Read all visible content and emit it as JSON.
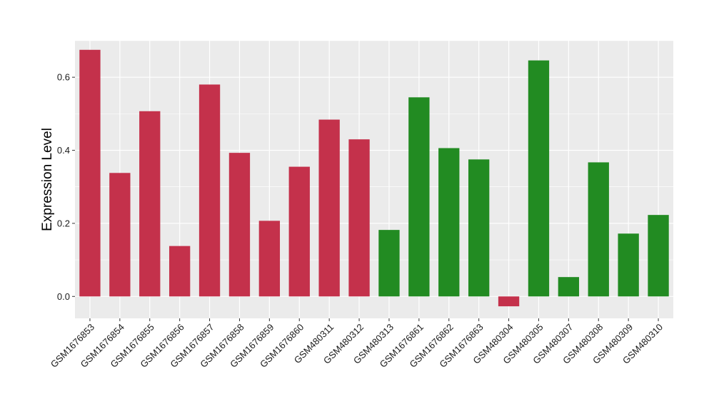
{
  "chart_data": {
    "type": "bar",
    "title": "",
    "xlabel": "",
    "ylabel": "Expression Level",
    "ylim": [
      -0.06,
      0.7
    ],
    "yticks": [
      0.0,
      0.2,
      0.4,
      0.6
    ],
    "ytick_labels": [
      "0.0",
      "0.2",
      "0.4",
      "0.6"
    ],
    "grid": true,
    "legend": "none",
    "panel_color": "#ebebeb",
    "gridline_color": "#ffffff",
    "categories": [
      "GSM1676853",
      "GSM1676854",
      "GSM1676855",
      "GSM1676856",
      "GSM1676857",
      "GSM1676858",
      "GSM1676859",
      "GSM1676860",
      "GSM480311",
      "GSM480312",
      "GSM480313",
      "GSM1676861",
      "GSM1676862",
      "GSM1676863",
      "GSM480304",
      "GSM480305",
      "GSM480307",
      "GSM480308",
      "GSM480309",
      "GSM480310"
    ],
    "values": [
      0.675,
      0.338,
      0.507,
      0.138,
      0.58,
      0.393,
      0.207,
      0.355,
      0.484,
      0.43,
      0.182,
      0.545,
      0.406,
      0.375,
      -0.027,
      0.646,
      0.053,
      0.367,
      0.172,
      0.223
    ],
    "bar_colors": [
      "#c4314b",
      "#c4314b",
      "#c4314b",
      "#c4314b",
      "#c4314b",
      "#c4314b",
      "#c4314b",
      "#c4314b",
      "#c4314b",
      "#c4314b",
      "#228b22",
      "#228b22",
      "#228b22",
      "#228b22",
      "#c4314b",
      "#228b22",
      "#228b22",
      "#228b22",
      "#228b22",
      "#228b22"
    ]
  }
}
